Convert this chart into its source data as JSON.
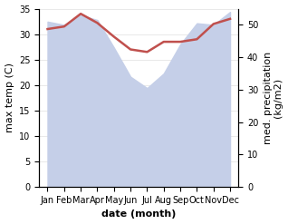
{
  "months": [
    "Jan",
    "Feb",
    "Mar",
    "Apr",
    "May",
    "Jun",
    "Jul",
    "Aug",
    "Sep",
    "Oct",
    "Nov",
    "Dec"
  ],
  "month_indices": [
    0,
    1,
    2,
    3,
    4,
    5,
    6,
    7,
    8,
    9,
    10,
    11
  ],
  "temperature": [
    31.0,
    31.5,
    34.0,
    32.2,
    29.5,
    27.0,
    26.5,
    28.5,
    28.5,
    29.0,
    32.0,
    33.0
  ],
  "precip_raw": [
    51.0,
    50.0,
    53.0,
    51.5,
    43.0,
    34.0,
    30.5,
    35.0,
    44.0,
    50.5,
    50.0,
    54.0
  ],
  "temp_color": "#c0504d",
  "precip_fill_color": "#c5cfe8",
  "temp_ylim": [
    0,
    35
  ],
  "precip_ylim": [
    0,
    55
  ],
  "temp_yticks": [
    0,
    5,
    10,
    15,
    20,
    25,
    30,
    35
  ],
  "precip_yticks": [
    0,
    10,
    20,
    30,
    40,
    50
  ],
  "xlabel": "date (month)",
  "ylabel_left": "max temp (C)",
  "ylabel_right": "med. precipitation\n(kg/m2)",
  "background_color": "#ffffff",
  "tick_label_size": 7,
  "axis_label_size": 8
}
